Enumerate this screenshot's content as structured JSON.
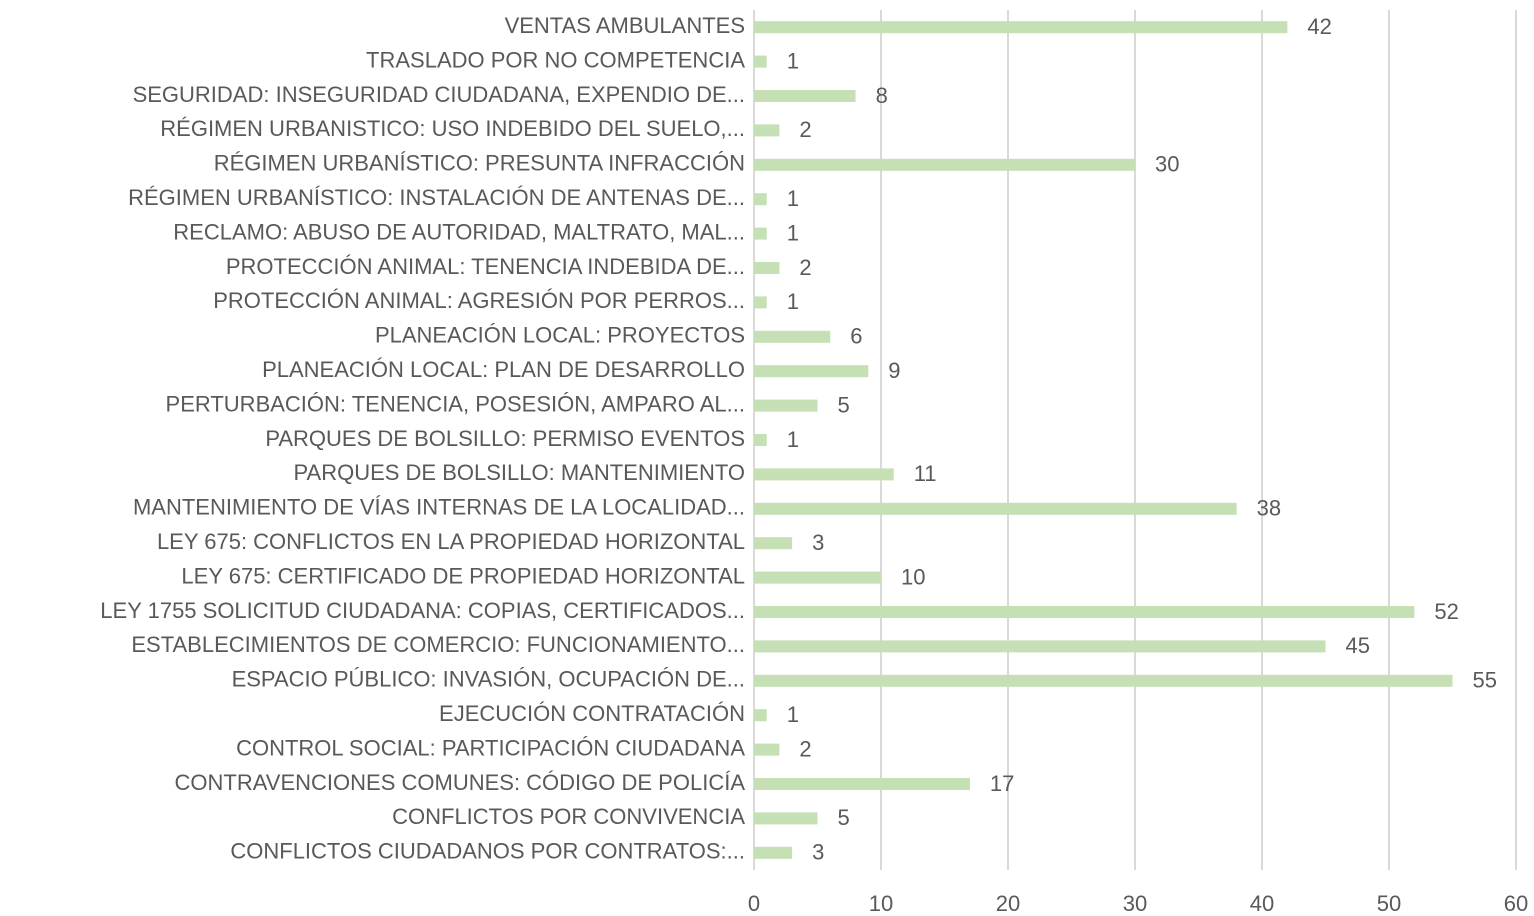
{
  "chart_data": {
    "type": "bar",
    "orientation": "horizontal",
    "categories": [
      "VENTAS AMBULANTES",
      "TRASLADO POR NO COMPETENCIA",
      "SEGURIDAD: INSEGURIDAD CIUDADANA, EXPENDIO DE...",
      "RÉGIMEN URBANISTICO: USO INDEBIDO DEL SUELO,...",
      "RÉGIMEN URBANÍSTICO: PRESUNTA INFRACCIÓN",
      "RÉGIMEN URBANÍSTICO: INSTALACIÓN DE ANTENAS DE...",
      "RECLAMO: ABUSO DE AUTORIDAD, MALTRATO, MAL...",
      "PROTECCIÓN ANIMAL: TENENCIA INDEBIDA DE...",
      "PROTECCIÓN ANIMAL: AGRESIÓN POR PERROS...",
      "PLANEACIÓN LOCAL: PROYECTOS",
      "PLANEACIÓN LOCAL: PLAN DE DESARROLLO",
      "PERTURBACIÓN: TENENCIA, POSESIÓN, AMPARO AL...",
      "PARQUES DE BOLSILLO: PERMISO EVENTOS",
      "PARQUES DE BOLSILLO: MANTENIMIENTO",
      "MANTENIMIENTO DE VÍAS INTERNAS DE LA LOCALIDAD...",
      "LEY 675: CONFLICTOS EN LA PROPIEDAD HORIZONTAL",
      "LEY 675: CERTIFICADO DE PROPIEDAD HORIZONTAL",
      "LEY 1755 SOLICITUD CIUDADANA: COPIAS, CERTIFICADOS...",
      "ESTABLECIMIENTOS DE COMERCIO: FUNCIONAMIENTO...",
      "ESPACIO PÚBLICO: INVASIÓN, OCUPACIÓN DE...",
      "EJECUCIÓN CONTRATACIÓN",
      "CONTROL SOCIAL: PARTICIPACIÓN CIUDADANA",
      "CONTRAVENCIONES COMUNES: CÓDIGO DE POLICÍA",
      "CONFLICTOS POR CONVIVENCIA",
      "CONFLICTOS CIUDADANOS POR CONTRATOS:..."
    ],
    "values": [
      42,
      1,
      8,
      2,
      30,
      1,
      1,
      2,
      1,
      6,
      9,
      5,
      1,
      11,
      38,
      3,
      10,
      52,
      45,
      55,
      1,
      2,
      17,
      5,
      3
    ],
    "color": "#c5e0b4",
    "xlim": [
      0,
      60
    ],
    "xticks": [
      0,
      10,
      20,
      30,
      40,
      50,
      60
    ],
    "grid": true
  }
}
